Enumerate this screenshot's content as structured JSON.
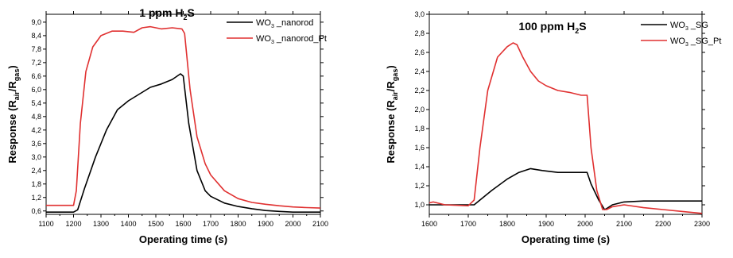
{
  "chart_data": [
    {
      "type": "line",
      "title": "1 ppm H",
      "title_sub": "2",
      "title_tail": "S",
      "xlabel": "Operating time (s)",
      "ylabel": {
        "main": "Response (R",
        "sub1": "air",
        "mid": "/R",
        "sub2": "gas",
        "end": ")"
      },
      "xlim": [
        1100,
        2100
      ],
      "ylim": [
        0.45,
        9.35
      ],
      "xticks": [
        "1100",
        "1200",
        "1300",
        "1400",
        "1500",
        "1600",
        "1700",
        "1800",
        "1900",
        "2000",
        "2100"
      ],
      "yticks": [
        "0,6",
        "1,2",
        "1,8",
        "2,4",
        "3,0",
        "3,6",
        "4,2",
        "4,8",
        "5,4",
        "6,0",
        "6,6",
        "7,2",
        "7,8",
        "8,4",
        "9,0"
      ],
      "legend_position": "top-right",
      "series": [
        {
          "name": {
            "a": "WO",
            "sub": "3",
            "b": " _nanorod"
          },
          "color": "#000000",
          "x": [
            1100,
            1200,
            1215,
            1240,
            1280,
            1320,
            1360,
            1400,
            1440,
            1480,
            1520,
            1560,
            1590,
            1600,
            1620,
            1650,
            1680,
            1700,
            1750,
            1800,
            1850,
            1900,
            1950,
            2000,
            2050,
            2100
          ],
          "y": [
            0.55,
            0.55,
            0.65,
            1.6,
            3.0,
            4.2,
            5.1,
            5.5,
            5.8,
            6.1,
            6.25,
            6.45,
            6.7,
            6.6,
            4.5,
            2.4,
            1.5,
            1.25,
            0.95,
            0.8,
            0.7,
            0.62,
            0.58,
            0.55,
            0.55,
            0.55
          ]
        },
        {
          "name": {
            "a": "WO",
            "sub": "3",
            "b": " _nanorod_Pt"
          },
          "color": "#e03030",
          "x": [
            1100,
            1200,
            1210,
            1225,
            1245,
            1270,
            1300,
            1340,
            1380,
            1420,
            1450,
            1480,
            1520,
            1560,
            1595,
            1605,
            1625,
            1650,
            1680,
            1700,
            1750,
            1800,
            1850,
            1900,
            1950,
            2000,
            2050,
            2100
          ],
          "y": [
            0.85,
            0.85,
            1.5,
            4.5,
            6.8,
            7.9,
            8.4,
            8.6,
            8.6,
            8.55,
            8.75,
            8.8,
            8.7,
            8.75,
            8.7,
            8.5,
            6.0,
            3.9,
            2.7,
            2.2,
            1.5,
            1.15,
            0.98,
            0.9,
            0.83,
            0.78,
            0.75,
            0.73
          ]
        }
      ]
    },
    {
      "type": "line",
      "title": "100 ppm H",
      "title_sub": "2",
      "title_tail": "S",
      "xlabel": "Operating time (s)",
      "ylabel": {
        "main": "Response (R",
        "sub1": "air",
        "mid": "/R",
        "sub2": "gas",
        "end": ")"
      },
      "xlim": [
        1600,
        2300
      ],
      "ylim": [
        0.9,
        3.0
      ],
      "xticks": [
        "1600",
        "1700",
        "1800",
        "1900",
        "2000",
        "2100",
        "2200",
        "2300"
      ],
      "yticks": [
        "1,0",
        "1,2",
        "1,4",
        "1,6",
        "1,8",
        "2,0",
        "2,2",
        "2,4",
        "2,6",
        "2,8",
        "3,0"
      ],
      "legend_position": "top-right",
      "series": [
        {
          "name": {
            "a": "WO",
            "sub": "3",
            "b": " _SG"
          },
          "color": "#000000",
          "x": [
            1600,
            1715,
            1730,
            1760,
            1800,
            1830,
            1860,
            1890,
            1930,
            1970,
            2005,
            2015,
            2035,
            2050,
            2055,
            2070,
            2100,
            2150,
            2200,
            2250,
            2300
          ],
          "y": [
            1.0,
            1.0,
            1.05,
            1.15,
            1.27,
            1.34,
            1.38,
            1.36,
            1.34,
            1.34,
            1.34,
            1.22,
            1.05,
            0.95,
            0.96,
            1.0,
            1.03,
            1.04,
            1.04,
            1.04,
            1.04
          ]
        },
        {
          "name": {
            "a": "WO",
            "sub": "3",
            "b": " _SG_Pt"
          },
          "color": "#e03030",
          "x": [
            1600,
            1610,
            1640,
            1700,
            1715,
            1730,
            1750,
            1775,
            1800,
            1815,
            1825,
            1840,
            1860,
            1880,
            1900,
            1930,
            1960,
            1990,
            2005,
            2015,
            2030,
            2045,
            2055,
            2070,
            2100,
            2150,
            2200,
            2250,
            2300
          ],
          "y": [
            1.02,
            1.03,
            1.0,
            0.99,
            1.05,
            1.6,
            2.2,
            2.55,
            2.66,
            2.7,
            2.68,
            2.55,
            2.4,
            2.3,
            2.25,
            2.2,
            2.18,
            2.15,
            2.15,
            1.6,
            1.15,
            0.95,
            0.95,
            0.98,
            1.0,
            0.97,
            0.95,
            0.93,
            0.91
          ]
        }
      ]
    }
  ]
}
